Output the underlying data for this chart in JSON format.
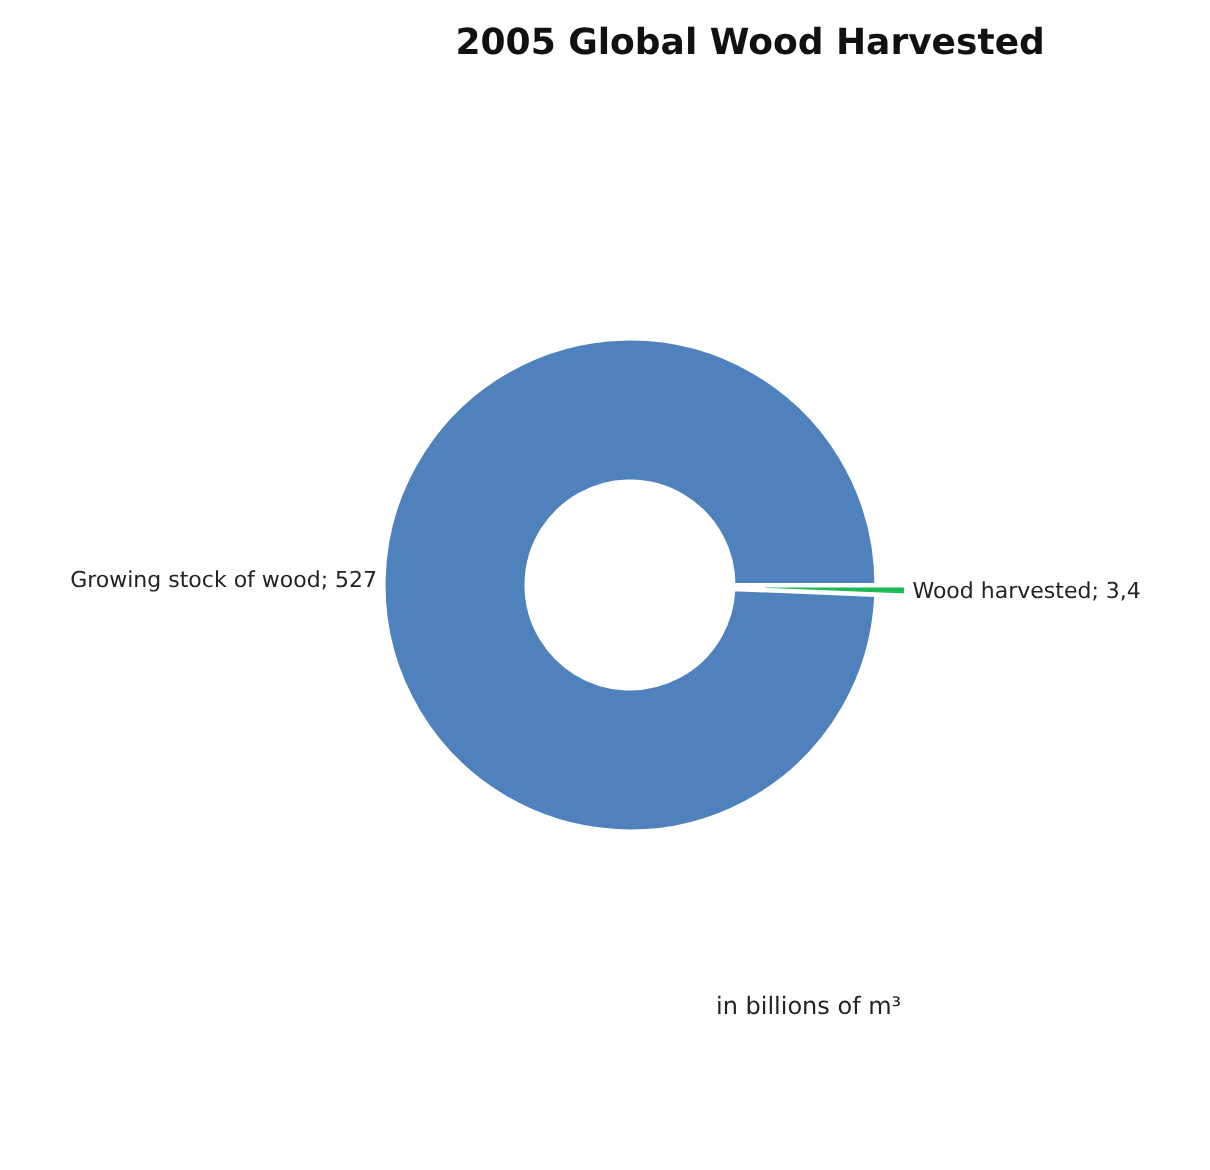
{
  "chart_data": {
    "type": "donut",
    "title": "2005 Global Wood Harvested",
    "categories": [
      "Wood harvested",
      "Growing stock of wood"
    ],
    "values": [
      3.4,
      527
    ],
    "value_labels": [
      "3,4",
      "527"
    ],
    "colors": [
      "#1db954",
      "#4f81bd"
    ],
    "legend": false,
    "annotations": [
      "in billions of m³"
    ]
  }
}
